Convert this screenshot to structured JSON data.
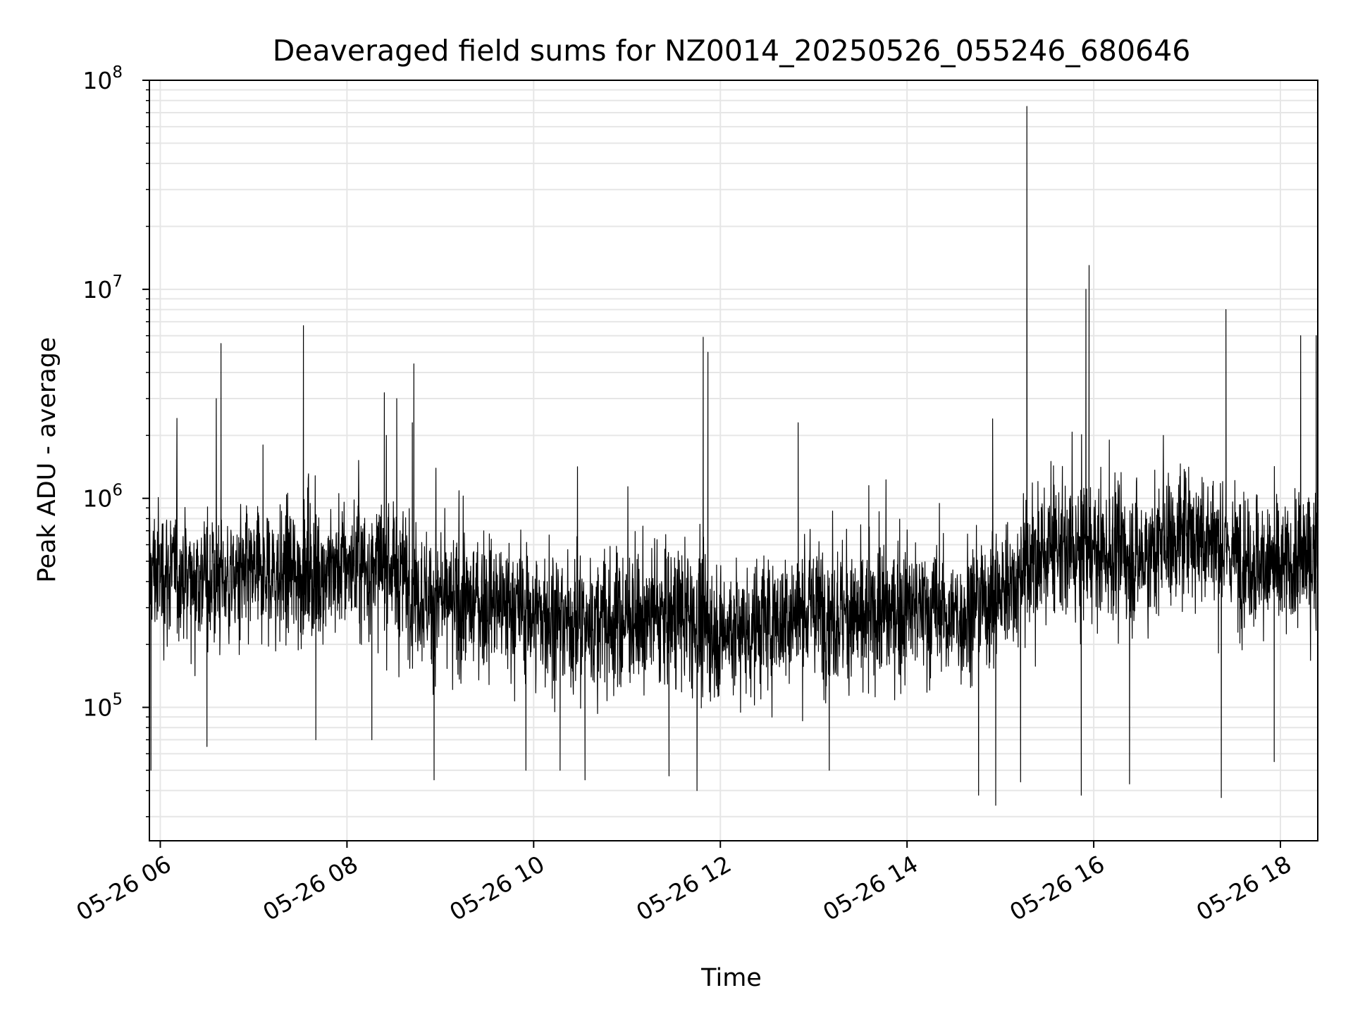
{
  "chart_data": {
    "type": "line",
    "title": "Deaveraged field sums for NZ0014_20250526_055246_680646",
    "xlabel": "Time",
    "ylabel": "Peak ADU - average",
    "yscale": "log",
    "xlim": [
      "2025-05-26 05:53",
      "2025-05-26 18:24"
    ],
    "ylim": [
      23000,
      100000000
    ],
    "grid": "major and minor",
    "line_color": "#000000",
    "grid_color": "#e6e6e6",
    "legend": "none",
    "x_ticks": [
      {
        "value": "2025-05-26 06:00",
        "label": "05-26 06"
      },
      {
        "value": "2025-05-26 08:00",
        "label": "05-26 08"
      },
      {
        "value": "2025-05-26 10:00",
        "label": "05-26 10"
      },
      {
        "value": "2025-05-26 12:00",
        "label": "05-26 12"
      },
      {
        "value": "2025-05-26 14:00",
        "label": "05-26 14"
      },
      {
        "value": "2025-05-26 16:00",
        "label": "05-26 16"
      },
      {
        "value": "2025-05-26 18:00",
        "label": "05-26 18"
      }
    ],
    "y_ticks": [
      {
        "value": 100000,
        "base": "10",
        "exp": "5"
      },
      {
        "value": 1000000,
        "base": "10",
        "exp": "6"
      },
      {
        "value": 10000000,
        "base": "10",
        "exp": "7"
      },
      {
        "value": 100000000,
        "base": "10",
        "exp": "8"
      }
    ],
    "series": [
      {
        "baseline": [
          [
            "2025-05-26 05:53",
            450000
          ],
          [
            "2025-05-26 06:30",
            420000
          ],
          [
            "2025-05-26 07:00",
            400000
          ],
          [
            "2025-05-26 07:30",
            430000
          ],
          [
            "2025-05-26 08:00",
            480000
          ],
          [
            "2025-05-26 08:30",
            450000
          ],
          [
            "2025-05-26 09:00",
            300000
          ],
          [
            "2025-05-26 09:30",
            320000
          ],
          [
            "2025-05-26 10:00",
            280000
          ],
          [
            "2025-05-26 10:30",
            250000
          ],
          [
            "2025-05-26 11:00",
            260000
          ],
          [
            "2025-05-26 11:30",
            280000
          ],
          [
            "2025-05-26 12:00",
            230000
          ],
          [
            "2025-05-26 12:30",
            250000
          ],
          [
            "2025-05-26 13:00",
            300000
          ],
          [
            "2025-05-26 13:30",
            260000
          ],
          [
            "2025-05-26 14:00",
            300000
          ],
          [
            "2025-05-26 14:30",
            270000
          ],
          [
            "2025-05-26 15:00",
            350000
          ],
          [
            "2025-05-26 15:30",
            550000
          ],
          [
            "2025-05-26 16:00",
            550000
          ],
          [
            "2025-05-26 16:30",
            520000
          ],
          [
            "2025-05-26 17:00",
            700000
          ],
          [
            "2025-05-26 17:30",
            550000
          ],
          [
            "2025-05-26 18:00",
            450000
          ],
          [
            "2025-05-26 18:24",
            550000
          ]
        ],
        "spikes": [
          [
            "2025-05-26 06:36",
            3000000
          ],
          [
            "2025-05-26 06:39",
            5500000
          ],
          [
            "2025-05-26 07:06",
            1800000
          ],
          [
            "2025-05-26 07:32",
            6700000
          ],
          [
            "2025-05-26 08:24",
            3200000
          ],
          [
            "2025-05-26 08:32",
            3000000
          ],
          [
            "2025-05-26 08:42",
            2300000
          ],
          [
            "2025-05-26 08:43",
            4400000
          ],
          [
            "2025-05-26 11:49",
            5900000
          ],
          [
            "2025-05-26 11:52",
            5000000
          ],
          [
            "2025-05-26 12:50",
            2300000
          ],
          [
            "2025-05-26 14:55",
            2400000
          ],
          [
            "2025-05-26 15:17",
            75000000
          ],
          [
            "2025-05-26 15:55",
            10000000
          ],
          [
            "2025-05-26 15:57",
            13000000
          ],
          [
            "2025-05-26 16:10",
            1900000
          ],
          [
            "2025-05-26 17:25",
            8000000
          ],
          [
            "2025-05-26 18:13",
            6000000
          ],
          [
            "2025-05-26 18:23",
            6000000
          ]
        ],
        "dips": [
          [
            "2025-05-26 05:54",
            50000
          ],
          [
            "2025-05-26 06:30",
            65000
          ],
          [
            "2025-05-26 07:40",
            70000
          ],
          [
            "2025-05-26 08:16",
            70000
          ],
          [
            "2025-05-26 08:56",
            45000
          ],
          [
            "2025-05-26 09:55",
            50000
          ],
          [
            "2025-05-26 10:17",
            50000
          ],
          [
            "2025-05-26 10:33",
            45000
          ],
          [
            "2025-05-26 11:27",
            47000
          ],
          [
            "2025-05-26 11:45",
            40000
          ],
          [
            "2025-05-26 13:10",
            50000
          ],
          [
            "2025-05-26 14:46",
            38000
          ],
          [
            "2025-05-26 14:57",
            34000
          ],
          [
            "2025-05-26 15:13",
            44000
          ],
          [
            "2025-05-26 15:52",
            38000
          ],
          [
            "2025-05-26 16:23",
            43000
          ],
          [
            "2025-05-26 17:22",
            37000
          ],
          [
            "2025-05-26 17:56",
            55000
          ]
        ]
      }
    ]
  }
}
